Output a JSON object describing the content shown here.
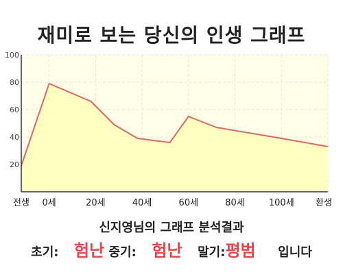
{
  "title": "재미로 보는 당신의 인생 그래프",
  "chart_data": {
    "type": "area",
    "x_ticks": [
      {
        "x": -12,
        "label": "전생"
      },
      {
        "x": 0,
        "label": "0세"
      },
      {
        "x": 20,
        "label": "20세"
      },
      {
        "x": 40,
        "label": "40세"
      },
      {
        "x": 60,
        "label": "60세"
      },
      {
        "x": 80,
        "label": "80세"
      },
      {
        "x": 100,
        "label": "100세"
      },
      {
        "x": 120,
        "label": "환생"
      }
    ],
    "xlim": [
      -12,
      120
    ],
    "y_ticks": [
      20,
      40,
      60,
      80,
      100
    ],
    "ylim": [
      0,
      100
    ],
    "series": [
      {
        "points": [
          [
            -12,
            19
          ],
          [
            0,
            79
          ],
          [
            18,
            66
          ],
          [
            28,
            49
          ],
          [
            38,
            39
          ],
          [
            52,
            36
          ],
          [
            60,
            55
          ],
          [
            72,
            47
          ],
          [
            100,
            39
          ],
          [
            120,
            33
          ]
        ]
      }
    ],
    "grid": true,
    "colors": {
      "line": "#e06666",
      "fill": "#ffffc0",
      "plot_bg": "#ffffe8",
      "grid": "#e6e6cc"
    }
  },
  "summary": {
    "title": "신지영님의 그래프 분석결과",
    "early_label": "초기:",
    "early_value": "험난",
    "middle_label": "중기:",
    "middle_value": "험난",
    "late_label": "말기:",
    "late_value": "평범",
    "ending": "입니다"
  }
}
